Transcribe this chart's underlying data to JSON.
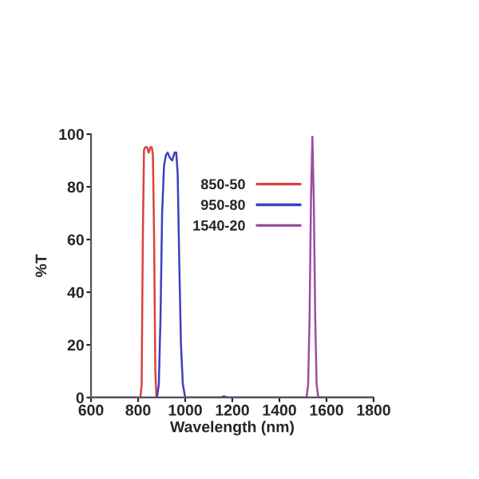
{
  "chart_data": {
    "type": "line",
    "xlabel": "Wavelength (nm)",
    "ylabel": "%T",
    "xlim": [
      600,
      1800
    ],
    "xticks": [
      600,
      800,
      1000,
      1200,
      1400,
      1600,
      1800
    ],
    "ylim": [
      0,
      100
    ],
    "yticks": [
      0,
      20,
      40,
      60,
      80,
      100
    ],
    "grid": false,
    "legend": "top",
    "marker": "none",
    "line_style": "solid",
    "series": [
      {
        "name": "850-50",
        "color": "#d9413f",
        "x": [
          600,
          810,
          815,
          820,
          825,
          830,
          838,
          845,
          852,
          858,
          863,
          868,
          873,
          878,
          1800
        ],
        "values": [
          0,
          0,
          5,
          60,
          94,
          95,
          95,
          93,
          95,
          95,
          92,
          60,
          10,
          0,
          0
        ]
      },
      {
        "name": "950-80",
        "color": "#3f3fbf",
        "x": [
          600,
          880,
          888,
          895,
          902,
          910,
          918,
          925,
          935,
          945,
          955,
          962,
          968,
          975,
          982,
          990,
          1000,
          1150,
          1165,
          1180,
          1800
        ],
        "values": [
          0,
          0,
          5,
          30,
          70,
          88,
          92,
          93,
          91,
          90,
          93,
          93,
          85,
          50,
          20,
          5,
          0,
          0,
          0.5,
          0,
          0
        ]
      },
      {
        "name": "1540-20",
        "color": "#9a4f9e",
        "x": [
          600,
          1515,
          1522,
          1528,
          1534,
          1540,
          1546,
          1552,
          1558,
          1565,
          1800
        ],
        "values": [
          0,
          0,
          5,
          30,
          75,
          99,
          75,
          30,
          5,
          0,
          0
        ]
      }
    ]
  }
}
